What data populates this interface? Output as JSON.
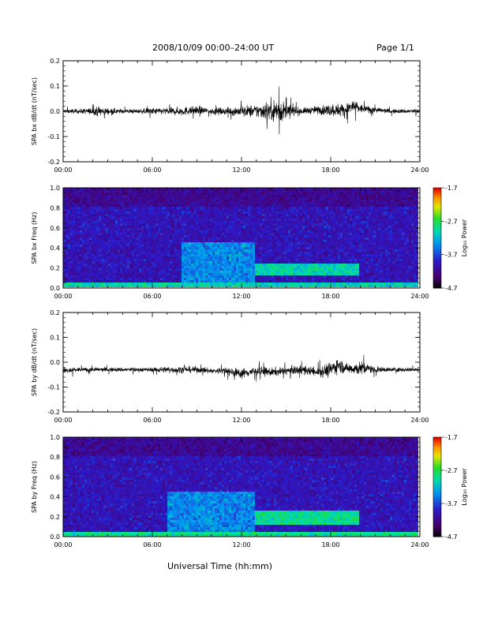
{
  "header": {
    "title": "2008/10/09   00:00–24:00 UT",
    "page": "Page 1/1"
  },
  "xlabel": "Universal Time (hh:mm)",
  "chart_data": [
    {
      "type": "line",
      "ylabel": "SPA bx dB/dt (nT/sec)",
      "ylim": [
        -0.2,
        0.2
      ],
      "xlim": [
        0,
        24
      ],
      "x_ticks": [
        "00:00",
        "06:00",
        "12:00",
        "18:00",
        "24:00"
      ],
      "y_ticks": [
        "0.2",
        "0.1",
        "0.0",
        "-0.1",
        "-0.2"
      ],
      "baseline": 0.0,
      "envelope": {
        "x": [
          0,
          1,
          2,
          2.5,
          3,
          4,
          5,
          6,
          7,
          8,
          9,
          10,
          11,
          12,
          13,
          14,
          14.5,
          15,
          16,
          17,
          18,
          19,
          19.5,
          20,
          21,
          22,
          24
        ],
        "upper": [
          0.02,
          0.02,
          0.03,
          0.05,
          0.03,
          0.02,
          0.02,
          0.03,
          0.03,
          0.04,
          0.04,
          0.03,
          0.03,
          0.05,
          0.06,
          0.1,
          0.12,
          0.07,
          0.03,
          0.04,
          0.06,
          0.07,
          0.09,
          0.05,
          0.03,
          0.02,
          0.02
        ],
        "lower": [
          -0.02,
          -0.02,
          -0.03,
          -0.05,
          -0.03,
          -0.02,
          -0.02,
          -0.03,
          -0.03,
          -0.04,
          -0.03,
          -0.03,
          -0.03,
          -0.05,
          -0.06,
          -0.09,
          -0.12,
          -0.07,
          -0.03,
          -0.03,
          -0.05,
          -0.06,
          -0.05,
          -0.03,
          -0.02,
          -0.02,
          -0.02
        ]
      }
    },
    {
      "type": "heatmap",
      "ylabel": "SPA bx Freq (Hz)",
      "ylim": [
        0.0,
        1.0
      ],
      "xlim": [
        0,
        24
      ],
      "x_ticks": [
        "00:00",
        "06:00",
        "12:00",
        "18:00",
        "24:00"
      ],
      "y_ticks": [
        "1.0",
        "0.8",
        "0.6",
        "0.4",
        "0.2",
        "0.0"
      ],
      "colorbar": {
        "label": "Log₁₀ Power",
        "range": [
          -4.7,
          -1.7
        ],
        "ticks": [
          "-1.7",
          "-2.7",
          "-3.7",
          "-4.7"
        ]
      },
      "background_level": -3.95,
      "features": [
        {
          "x": [
            8,
            13
          ],
          "y": [
            0.02,
            0.45
          ],
          "level": -3.4
        },
        {
          "x": [
            13,
            20
          ],
          "y": [
            0.13,
            0.23
          ],
          "level": -3.0
        },
        {
          "x": [
            0,
            24
          ],
          "y": [
            0.0,
            0.05
          ],
          "level": -3.0
        }
      ]
    },
    {
      "type": "line",
      "ylabel": "SPA by dB/dt (nT/sec)",
      "ylim": [
        -0.2,
        0.2
      ],
      "xlim": [
        0,
        24
      ],
      "x_ticks": [
        "00:00",
        "06:00",
        "12:00",
        "18:00",
        "24:00"
      ],
      "y_ticks": [
        "0.2",
        "0.1",
        "0.0",
        "-0.1",
        "-0.2"
      ],
      "baseline": -0.03,
      "envelope": {
        "x": [
          0,
          0.3,
          1,
          2,
          3,
          4,
          5,
          6,
          7,
          8,
          9,
          10,
          11,
          12,
          13,
          14,
          15,
          16,
          17,
          18,
          18.5,
          19,
          20,
          20.5,
          21,
          22,
          24
        ],
        "upper": [
          -0.01,
          0.0,
          -0.01,
          -0.01,
          -0.01,
          -0.01,
          -0.01,
          -0.01,
          0.0,
          0.0,
          0.0,
          -0.01,
          0.0,
          0.0,
          0.01,
          0.0,
          0.0,
          0.01,
          0.0,
          0.04,
          0.06,
          0.02,
          0.04,
          0.02,
          0.0,
          -0.01,
          -0.01
        ],
        "lower": [
          -0.05,
          -0.07,
          -0.05,
          -0.05,
          -0.05,
          -0.05,
          -0.05,
          -0.05,
          -0.06,
          -0.06,
          -0.06,
          -0.06,
          -0.07,
          -0.09,
          -0.08,
          -0.08,
          -0.07,
          -0.07,
          -0.08,
          -0.1,
          -0.08,
          -0.07,
          -0.09,
          -0.07,
          -0.06,
          -0.05,
          -0.05
        ]
      }
    },
    {
      "type": "heatmap",
      "ylabel": "SPA by Freq (Hz)",
      "ylim": [
        0.0,
        1.0
      ],
      "xlim": [
        0,
        24
      ],
      "x_ticks": [
        "00:00",
        "06:00",
        "12:00",
        "18:00",
        "24:00"
      ],
      "y_ticks": [
        "1.0",
        "0.8",
        "0.6",
        "0.4",
        "0.2",
        "0.0"
      ],
      "colorbar": {
        "label": "Log₁₀ Power",
        "range": [
          -4.7,
          -1.7
        ],
        "ticks": [
          "-1.7",
          "-2.7",
          "-3.7",
          "-4.7"
        ]
      },
      "background_level": -3.95,
      "features": [
        {
          "x": [
            7,
            13
          ],
          "y": [
            0.02,
            0.45
          ],
          "level": -3.4
        },
        {
          "x": [
            13,
            20
          ],
          "y": [
            0.13,
            0.25
          ],
          "level": -2.9
        },
        {
          "x": [
            0,
            24
          ],
          "y": [
            0.0,
            0.05
          ],
          "level": -2.9
        }
      ]
    }
  ],
  "colors": {
    "axis": "#000000",
    "trace": "#000000",
    "background": "#ffffff"
  }
}
